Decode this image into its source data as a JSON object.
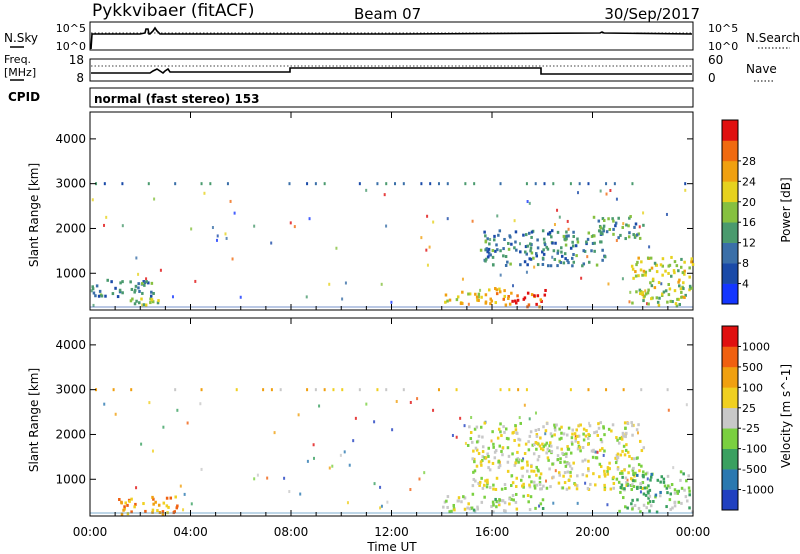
{
  "header": {
    "title": "Pykkvibaer (fitACF)",
    "beam": "Beam 07",
    "date": "30/Sep/2017"
  },
  "noise_panel": {
    "left_label": "N.Sky",
    "left_ticks": [
      "10^5",
      "10^0"
    ],
    "right_label": "N.Search",
    "right_ticks": [
      "10^5",
      "10^0"
    ]
  },
  "freq_panel": {
    "left_label_line1": "Freq.",
    "left_label_line2": "[MHz]",
    "left_ticks": [
      "18",
      "8"
    ],
    "right_label": "Nave",
    "right_ticks": [
      "60",
      "0"
    ],
    "cpid_label": "CPID",
    "cpid_text": "normal (fast stereo) 153"
  },
  "chart_data": [
    {
      "type": "heatmap",
      "name": "power",
      "ylabel": "Slant Range [km]",
      "ylim": [
        180,
        4600
      ],
      "yticks": [
        "1000",
        "2000",
        "3000",
        "4000"
      ],
      "colorbar_label": "Power [dB]",
      "colorbar_ticks": [
        "4",
        "8",
        "12",
        "16",
        "20",
        "24",
        "28"
      ],
      "colorbar_colors": [
        "#1436ff",
        "#1a4aa8",
        "#3a6fa8",
        "#4a9a6e",
        "#86c040",
        "#e6d21e",
        "#f0a010",
        "#f06a10",
        "#e01010"
      ],
      "regions": [
        {
          "t": [
            0.0,
            2.5
          ],
          "r": [
            500,
            900
          ],
          "level": 0.3
        },
        {
          "t": [
            1.5,
            3.0
          ],
          "r": [
            300,
            550
          ],
          "level": 0.5
        },
        {
          "t": [
            14.0,
            16.5
          ],
          "r": [
            350,
            700
          ],
          "level": 0.65
        },
        {
          "t": [
            16.5,
            18.2
          ],
          "r": [
            280,
            650
          ],
          "level": 0.9
        },
        {
          "t": [
            15.5,
            20.5
          ],
          "r": [
            1200,
            2000
          ],
          "level": 0.3
        },
        {
          "t": [
            20.0,
            22.0
          ],
          "r": [
            1800,
            2300
          ],
          "level": 0.35
        },
        {
          "t": [
            21.5,
            24.0
          ],
          "r": [
            300,
            1400
          ],
          "level": 0.55
        }
      ]
    },
    {
      "type": "heatmap",
      "name": "velocity",
      "ylabel": "Slant Range [km]",
      "ylim": [
        180,
        4600
      ],
      "yticks": [
        "1000",
        "2000",
        "3000",
        "4000"
      ],
      "colorbar_label": "Velocity [m s^-1]",
      "colorbar_ticks": [
        "1000",
        "500",
        "100",
        "25",
        "-25",
        "-100",
        "-500",
        "-1000"
      ],
      "colorbar_colors": [
        "#2040c0",
        "#2a78b0",
        "#3aa060",
        "#7ad040",
        "#c8c8c8",
        "#f0d020",
        "#f0a010",
        "#f06010",
        "#e01010"
      ],
      "regions": [
        {
          "t": [
            1.0,
            3.5
          ],
          "r": [
            250,
            650
          ],
          "level": 0.75
        },
        {
          "t": [
            14.0,
            18.0
          ],
          "r": [
            300,
            700
          ],
          "level": 0.45
        },
        {
          "t": [
            15.0,
            22.0
          ],
          "r": [
            800,
            2300
          ],
          "level": 0.5
        },
        {
          "t": [
            21.0,
            24.0
          ],
          "r": [
            300,
            1200
          ],
          "level": 0.35
        }
      ]
    }
  ],
  "x_axis": {
    "ticks": [
      "00:00",
      "04:00",
      "08:00",
      "12:00",
      "16:00",
      "20:00",
      "00:00"
    ],
    "label": "Time UT"
  }
}
